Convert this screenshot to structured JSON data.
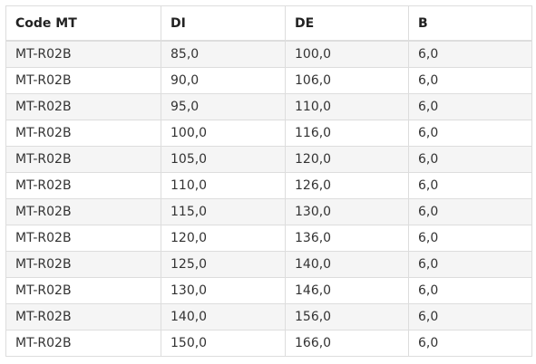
{
  "table": {
    "headers": [
      "Code MT",
      "DI",
      "DE",
      "B"
    ],
    "rows": [
      [
        "MT-R02B",
        "85,0",
        "100,0",
        "6,0"
      ],
      [
        "MT-R02B",
        "90,0",
        "106,0",
        "6,0"
      ],
      [
        "MT-R02B",
        "95,0",
        "110,0",
        "6,0"
      ],
      [
        "MT-R02B",
        "100,0",
        "116,0",
        "6,0"
      ],
      [
        "MT-R02B",
        "105,0",
        "120,0",
        "6,0"
      ],
      [
        "MT-R02B",
        "110,0",
        "126,0",
        "6,0"
      ],
      [
        "MT-R02B",
        "115,0",
        "130,0",
        "6,0"
      ],
      [
        "MT-R02B",
        "120,0",
        "136,0",
        "6,0"
      ],
      [
        "MT-R02B",
        "125,0",
        "140,0",
        "6,0"
      ],
      [
        "MT-R02B",
        "130,0",
        "146,0",
        "6,0"
      ],
      [
        "MT-R02B",
        "140,0",
        "156,0",
        "6,0"
      ],
      [
        "MT-R02B",
        "150,0",
        "166,0",
        "6,0"
      ]
    ]
  }
}
